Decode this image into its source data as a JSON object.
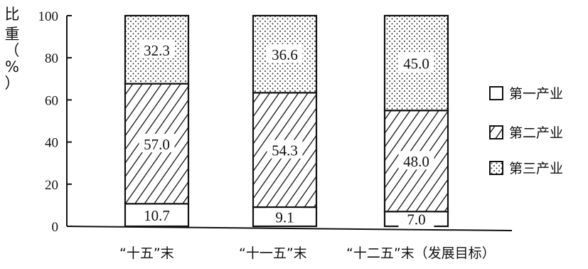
{
  "chart_data": {
    "type": "bar",
    "stacked": true,
    "categories": [
      "“十五”末",
      "“十一五”末",
      "“十二五”末（发展目标）"
    ],
    "series": [
      {
        "name": "第一产业",
        "values": [
          10.7,
          9.1,
          7.0
        ],
        "pattern": "blank"
      },
      {
        "name": "第二产业",
        "values": [
          57.0,
          54.3,
          48.0
        ],
        "pattern": "hatch"
      },
      {
        "name": "第三产业",
        "values": [
          32.3,
          36.6,
          45.0
        ],
        "pattern": "dots"
      }
    ],
    "ylabel_chars": [
      "比",
      "重",
      "（",
      "%",
      "）"
    ],
    "yticks": [
      0,
      20,
      40,
      60,
      80,
      100
    ],
    "ylim": [
      0,
      100
    ],
    "xlabel": "",
    "title": "",
    "legend_position": "right",
    "colors": {
      "ink": "#111111",
      "fill": "#ffffff"
    }
  }
}
